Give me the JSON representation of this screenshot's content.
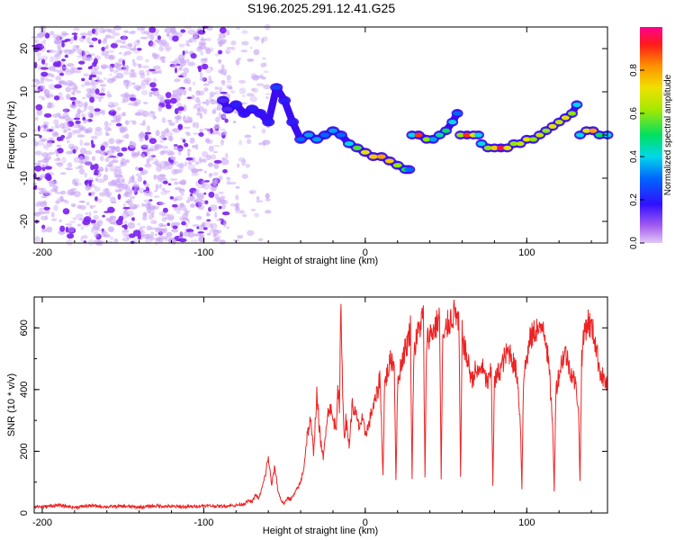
{
  "title": "S196.2025.291.12.41.G25",
  "colors": {
    "snr_line": "#ee2222",
    "points": "#7a1ff2",
    "axis": "#000000"
  },
  "chart_data": [
    {
      "type": "heatmap",
      "name": "frequency-vs-height",
      "xlabel": "Height of straight line (km)",
      "ylabel": "Frequency (Hz)",
      "xlim": [
        -205,
        150
      ],
      "ylim": [
        -25,
        25
      ],
      "xticks": [
        -200,
        -100,
        0,
        100
      ],
      "yticks": [
        -20,
        -10,
        0,
        10,
        20
      ],
      "colorbar": {
        "label": "Normalized spectral amplitude",
        "range": [
          0.0,
          1.0
        ],
        "ticks": [
          "0.0",
          "0.2",
          "0.4",
          "0.6",
          "0.8"
        ],
        "tick_values": [
          0.0,
          0.2,
          0.4,
          0.6,
          0.8
        ]
      },
      "noise_region": {
        "x_range": [
          -205,
          -85
        ],
        "y_range": [
          -25,
          25
        ],
        "amplitude": 0.08
      },
      "sparse_region": {
        "x_range": [
          -85,
          -60
        ],
        "y_range": [
          -25,
          25
        ],
        "amplitude": 0.04
      },
      "track": {
        "x": [
          -88,
          -85,
          -80,
          -75,
          -70,
          -65,
          -60,
          -55,
          -50,
          -45,
          -40,
          -35,
          -30,
          -25,
          -20,
          -15,
          -10,
          -5,
          0,
          5,
          10,
          15,
          20,
          25,
          27
        ],
        "y": [
          8,
          6,
          7,
          5,
          6,
          5,
          3,
          11,
          8,
          3,
          -1,
          0,
          -1,
          0,
          1,
          0,
          -2,
          -3,
          -4,
          -5,
          -5,
          -6,
          -7,
          -8,
          -8
        ],
        "amplitude": [
          0.15,
          0.15,
          0.2,
          0.18,
          0.2,
          0.18,
          0.2,
          0.25,
          0.2,
          0.2,
          0.3,
          0.35,
          0.35,
          0.3,
          0.35,
          0.3,
          0.4,
          0.55,
          0.7,
          0.75,
          0.8,
          0.75,
          0.6,
          0.5,
          0.3
        ]
      },
      "segments": [
        {
          "x": [
            29,
            33,
            38,
            42,
            46,
            50,
            54,
            57
          ],
          "y": [
            0,
            0,
            -1,
            -1,
            0,
            1,
            3,
            5
          ],
          "amplitude": [
            0.4,
            0.9,
            0.6,
            0.35,
            0.45,
            0.5,
            0.4,
            0.3
          ]
        },
        {
          "x": [
            59,
            63,
            67,
            70
          ],
          "y": [
            0,
            0,
            0,
            0
          ],
          "amplitude": [
            0.6,
            0.9,
            0.7,
            0.4
          ]
        },
        {
          "x": [
            72,
            76,
            80,
            84,
            88,
            92,
            96,
            100,
            104,
            108,
            112,
            116,
            120,
            124,
            128,
            131
          ],
          "y": [
            -2,
            -3,
            -3,
            -3,
            -3,
            -2,
            -2,
            -1,
            -1,
            0,
            1,
            2,
            3,
            4,
            5,
            7
          ],
          "amplitude": [
            0.4,
            0.6,
            0.75,
            0.95,
            0.7,
            0.6,
            0.65,
            0.7,
            0.6,
            0.65,
            0.6,
            0.7,
            0.65,
            0.7,
            0.6,
            0.4
          ]
        },
        {
          "x": [
            133,
            137,
            141,
            145,
            150
          ],
          "y": [
            0,
            1,
            1,
            0,
            0
          ],
          "amplitude": [
            0.4,
            0.7,
            0.8,
            0.5,
            0.4
          ]
        }
      ]
    },
    {
      "type": "line",
      "name": "snr-vs-height",
      "xlabel": "Height of straight line (km)",
      "ylabel": "SNR (10 * v/v)",
      "xlim": [
        -205,
        150
      ],
      "ylim": [
        0,
        700
      ],
      "xticks": [
        -200,
        -100,
        0,
        100
      ],
      "yticks": [
        0,
        200,
        400,
        600
      ],
      "x": [
        -205,
        -200,
        -190,
        -180,
        -170,
        -160,
        -150,
        -140,
        -130,
        -120,
        -110,
        -100,
        -90,
        -80,
        -75,
        -72,
        -70,
        -68,
        -66,
        -64,
        -62,
        -60,
        -58,
        -56,
        -54,
        -52,
        -50,
        -48,
        -46,
        -44,
        -42,
        -40,
        -38,
        -36,
        -34,
        -32,
        -30,
        -28,
        -26,
        -24,
        -22,
        -20,
        -18,
        -17,
        -16,
        -15,
        -14,
        -13,
        -12,
        -10,
        -8,
        -6,
        -4,
        -2,
        0,
        2,
        4,
        6,
        8,
        9,
        10,
        11,
        12,
        14,
        16,
        18,
        19,
        20,
        21,
        22,
        24,
        26,
        28,
        29,
        30,
        32,
        34,
        36,
        37,
        38,
        40,
        42,
        44,
        46,
        47,
        48,
        49,
        50,
        52,
        54,
        56,
        58,
        59,
        60,
        62,
        64,
        66,
        68,
        70,
        72,
        74,
        76,
        78,
        79,
        80,
        82,
        84,
        86,
        88,
        90,
        92,
        94,
        96,
        97,
        98,
        100,
        102,
        104,
        106,
        108,
        110,
        112,
        114,
        116,
        117,
        118,
        120,
        122,
        124,
        126,
        128,
        130,
        132,
        133,
        134,
        136,
        138,
        140,
        142,
        144,
        146,
        148,
        150
      ],
      "y": [
        22,
        20,
        25,
        18,
        24,
        20,
        22,
        19,
        23,
        21,
        20,
        24,
        22,
        25,
        30,
        40,
        35,
        60,
        45,
        80,
        120,
        180,
        90,
        150,
        70,
        40,
        30,
        50,
        45,
        60,
        80,
        100,
        150,
        250,
        300,
        200,
        380,
        250,
        170,
        300,
        350,
        300,
        280,
        420,
        320,
        700,
        380,
        250,
        300,
        220,
        350,
        320,
        280,
        300,
        260,
        280,
        330,
        360,
        400,
        450,
        300,
        120,
        420,
        460,
        500,
        480,
        110,
        400,
        450,
        480,
        520,
        550,
        600,
        110,
        520,
        570,
        610,
        640,
        110,
        560,
        580,
        590,
        610,
        640,
        110,
        580,
        550,
        600,
        620,
        640,
        650,
        600,
        110,
        580,
        520,
        480,
        430,
        460,
        450,
        480,
        440,
        420,
        460,
        90,
        420,
        450,
        470,
        500,
        520,
        520,
        480,
        450,
        300,
        80,
        440,
        500,
        560,
        580,
        600,
        580,
        620,
        560,
        450,
        300,
        70,
        400,
        450,
        500,
        520,
        480,
        450,
        420,
        350,
        100,
        500,
        600,
        620,
        600,
        570,
        500,
        450,
        430,
        410
      ]
    }
  ]
}
